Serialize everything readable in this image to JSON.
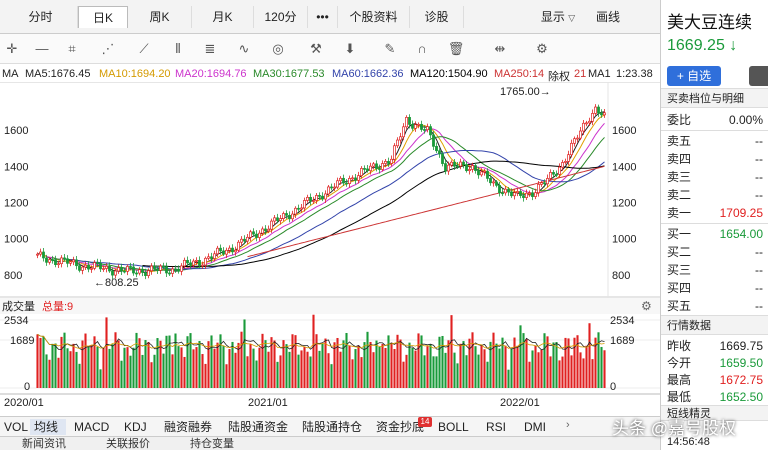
{
  "tabs": [
    "分时",
    "日K",
    "周K",
    "月K",
    "120分",
    "•••",
    "个股资料",
    "诊股"
  ],
  "toolbar_right": {
    "display_label": "显示",
    "draw_label": "画线"
  },
  "ma_line": {
    "ma": "MA",
    "ma5": "MA5:1676.45",
    "ma10": "MA10:1694.20",
    "ma20": "MA20:1694.76",
    "ma30": "MA30:1677.53",
    "ma60": "MA60:1662.36",
    "ma120": "MA120:1504.90",
    "ma250": "MA250:14",
    "ma250b": "除权",
    "ma250c": "21",
    "ma_last": "MA1",
    "ma_last2": "1:23.38"
  },
  "chart_data": {
    "type": "candlestick",
    "y_ticks": [
      800,
      1000,
      1200,
      1400,
      1600
    ],
    "x_labels": [
      "2020/01",
      "2021/01",
      "2022/01"
    ],
    "high_annotation": "1765.00→",
    "low_annotation": "←808.25",
    "volume_label": "成交量",
    "volume_total_label": "总量:9",
    "volume_ticks": [
      "2534",
      "1689",
      "0"
    ],
    "colors": {
      "up": "#e02020",
      "down": "#1a9a3a",
      "ma5": "#222222",
      "ma10": "#e0a000",
      "ma20": "#cc33cc",
      "ma30": "#2a8a2a",
      "ma60": "#3344aa",
      "ma120": "#000000",
      "ma250": "#cc3333"
    }
  },
  "indicators": [
    "VOL",
    "均线",
    "MACD",
    "KDJ",
    "融资融券",
    "陆股通资金",
    "陆股通持仓",
    "资金抄底",
    "BOLL",
    "RSI",
    "DMI"
  ],
  "indicator_badge": "14",
  "news_tabs": [
    "新闻资讯",
    "关联报价",
    "持仓变量"
  ],
  "stock": {
    "name": "美大豆连续",
    "price": "1669.25",
    "arrow": "↓",
    "add_label": "+ 自选"
  },
  "panel": {
    "orderbook_title": "买卖档位与明细",
    "ratio_label": "委比",
    "ratio_value": "0.00%",
    "sells": [
      {
        "label": "卖五",
        "value": "--"
      },
      {
        "label": "卖四",
        "value": "--"
      },
      {
        "label": "卖三",
        "value": "--"
      },
      {
        "label": "卖二",
        "value": "--"
      },
      {
        "label": "卖一",
        "value": "1709.25"
      }
    ],
    "buys": [
      {
        "label": "买一",
        "value": "1654.00"
      },
      {
        "label": "买二",
        "value": "--"
      },
      {
        "label": "买三",
        "value": "--"
      },
      {
        "label": "买四",
        "value": "--"
      },
      {
        "label": "买五",
        "value": "--"
      }
    ],
    "quote_title": "行情数据",
    "quotes": [
      {
        "label": "昨收",
        "value": "1669.75"
      },
      {
        "label": "今开",
        "value": "1659.50"
      },
      {
        "label": "最高",
        "value": "1672.75"
      },
      {
        "label": "最低",
        "value": "1652.50"
      }
    ],
    "short_title": "短线精灵",
    "short_time": "14:56:48"
  },
  "watermark": "头条 @嘉号股权"
}
